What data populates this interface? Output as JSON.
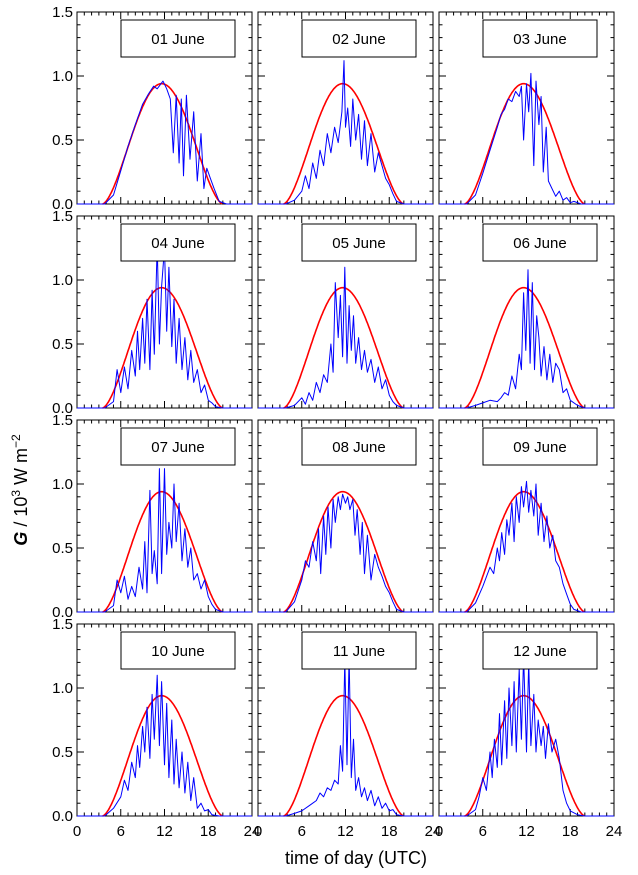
{
  "chart_data": {
    "type": "line",
    "layout": "4x3 small multiples",
    "xlabel": "time of day (UTC)",
    "ylabel": {
      "symbol": "G",
      "text": " / 10",
      "exp": "3",
      "unit": " W m",
      "unit_exp": "−2"
    },
    "xlim": [
      0,
      24
    ],
    "ylim": [
      0,
      1.5
    ],
    "xticks": [
      0,
      6,
      12,
      18,
      24
    ],
    "xtick_labels": [
      "0",
      "6",
      "12",
      "18",
      "24"
    ],
    "yticks": [
      0,
      0.5,
      1.0,
      1.5
    ],
    "ytick_labels": [
      "0.0",
      "0.5",
      "1.0",
      "1.5"
    ],
    "colors": {
      "measured": "#0000ff",
      "clear_sky": "#ff0000"
    },
    "clear_sky_curve": {
      "sunrise": 3.5,
      "sunset": 20.0,
      "peak_time": 11.6,
      "peak_value": 0.94
    },
    "panels": [
      {
        "label": "01 June",
        "measured": {
          "x": [
            3.8,
            5,
            6,
            7,
            8,
            9,
            9.8,
            10.5,
            11,
            11.8,
            12.3,
            12.8,
            13.2,
            13.6,
            14,
            14.3,
            14.6,
            15,
            15.5,
            16,
            16.5,
            17,
            17.4,
            17.8,
            18.3,
            18.8,
            19.5,
            20.5
          ],
          "y": [
            0.0,
            0.07,
            0.26,
            0.45,
            0.62,
            0.78,
            0.86,
            0.92,
            0.9,
            0.96,
            0.9,
            0.82,
            0.4,
            0.85,
            0.32,
            0.82,
            0.22,
            0.85,
            0.35,
            0.72,
            0.18,
            0.55,
            0.12,
            0.28,
            0.2,
            0.12,
            0.02,
            0.0
          ]
        }
      },
      {
        "label": "02 June",
        "measured": {
          "x": [
            3.8,
            5,
            6,
            6.5,
            7,
            7.5,
            8,
            8.5,
            9,
            9.5,
            10,
            10.5,
            11,
            11.5,
            11.8,
            12,
            12.3,
            12.7,
            13,
            13.4,
            13.8,
            14.2,
            14.6,
            15,
            15.5,
            16,
            16.5,
            17,
            17.5,
            18,
            18.5,
            19,
            20
          ],
          "y": [
            0.0,
            0.03,
            0.1,
            0.22,
            0.12,
            0.32,
            0.2,
            0.42,
            0.3,
            0.55,
            0.4,
            0.6,
            0.48,
            0.72,
            1.12,
            0.6,
            0.75,
            0.45,
            0.82,
            0.5,
            0.7,
            0.35,
            0.65,
            0.3,
            0.55,
            0.25,
            0.4,
            0.3,
            0.2,
            0.15,
            0.08,
            0.02,
            0.0
          ]
        }
      },
      {
        "label": "03 June",
        "measured": {
          "x": [
            3.8,
            5,
            6,
            7,
            8,
            8.5,
            9,
            9.5,
            10,
            10.5,
            11,
            11.3,
            11.6,
            12,
            12.3,
            12.6,
            13,
            13.3,
            13.7,
            14,
            14.3,
            14.7,
            15,
            15.5,
            16,
            16.5,
            17,
            17.5,
            18,
            18.5,
            19.5
          ],
          "y": [
            0.0,
            0.07,
            0.24,
            0.42,
            0.6,
            0.7,
            0.74,
            0.82,
            0.8,
            0.88,
            0.84,
            0.92,
            0.5,
            0.94,
            0.72,
            1.02,
            0.3,
            0.96,
            0.62,
            0.84,
            0.25,
            0.6,
            0.18,
            0.12,
            0.06,
            0.1,
            0.03,
            0.05,
            0.01,
            0.02,
            0.0
          ]
        }
      },
      {
        "label": "04 June",
        "measured": {
          "x": [
            3.8,
            5,
            5.5,
            6,
            6.5,
            7,
            7.5,
            8,
            8.3,
            8.6,
            9,
            9.3,
            9.6,
            10,
            10.3,
            10.6,
            11,
            11.3,
            11.6,
            12,
            12.3,
            12.6,
            13,
            13.3,
            13.6,
            14,
            14.4,
            14.8,
            15.2,
            15.6,
            16,
            16.5,
            17,
            17.5,
            18,
            18.5,
            19,
            20
          ],
          "y": [
            0.0,
            0.05,
            0.3,
            0.12,
            0.32,
            0.15,
            0.45,
            0.25,
            0.6,
            0.3,
            0.7,
            0.35,
            0.85,
            0.3,
            0.92,
            0.42,
            1.28,
            0.5,
            0.95,
            1.25,
            0.6,
            1.1,
            0.48,
            0.85,
            0.35,
            0.7,
            0.3,
            0.55,
            0.22,
            0.45,
            0.2,
            0.3,
            0.12,
            0.18,
            0.06,
            0.04,
            0.01,
            0.0
          ]
        }
      },
      {
        "label": "05 June",
        "measured": {
          "x": [
            3.8,
            5,
            6,
            6.5,
            7,
            7.5,
            8,
            8.5,
            9,
            9.5,
            10,
            10.3,
            10.6,
            11,
            11.3,
            11.6,
            11.9,
            12.2,
            12.5,
            12.8,
            13.1,
            13.4,
            13.8,
            14.2,
            14.6,
            15,
            15.5,
            16,
            16.5,
            17,
            17.5,
            18,
            18.5,
            19,
            20
          ],
          "y": [
            0.0,
            0.02,
            0.08,
            0.03,
            0.12,
            0.06,
            0.2,
            0.12,
            0.26,
            0.2,
            0.5,
            0.28,
            0.98,
            0.55,
            0.88,
            0.4,
            1.1,
            0.35,
            0.8,
            0.45,
            0.72,
            0.35,
            0.55,
            0.3,
            0.45,
            0.28,
            0.38,
            0.2,
            0.32,
            0.15,
            0.22,
            0.1,
            0.05,
            0.02,
            0.0
          ]
        }
      },
      {
        "label": "06 June",
        "measured": {
          "x": [
            3.8,
            5,
            6,
            7,
            8,
            8.5,
            9,
            9.5,
            10,
            10.5,
            11,
            11.3,
            11.6,
            11.9,
            12.2,
            12.5,
            12.8,
            13.1,
            13.4,
            13.7,
            14,
            14.4,
            14.8,
            15.2,
            15.6,
            16,
            16.5,
            17,
            17.5,
            18,
            19,
            20
          ],
          "y": [
            0.0,
            0.02,
            0.04,
            0.06,
            0.05,
            0.08,
            0.12,
            0.1,
            0.25,
            0.15,
            0.42,
            0.3,
            0.9,
            0.45,
            1.08,
            0.35,
            0.98,
            0.3,
            0.72,
            0.55,
            0.25,
            0.48,
            0.22,
            0.42,
            0.2,
            0.35,
            0.3,
            0.12,
            0.15,
            0.06,
            0.02,
            0.0
          ]
        }
      },
      {
        "label": "07 June",
        "measured": {
          "x": [
            3.8,
            5,
            5.5,
            6,
            6.5,
            7,
            7.5,
            8,
            8.5,
            9,
            9.3,
            9.6,
            10,
            10.3,
            10.6,
            11,
            11.3,
            11.6,
            12,
            12.3,
            12.6,
            13,
            13.3,
            13.6,
            14,
            14.4,
            14.8,
            15.2,
            15.6,
            16,
            16.5,
            17,
            17.5,
            18,
            18.5,
            19,
            20
          ],
          "y": [
            0.0,
            0.05,
            0.25,
            0.15,
            0.28,
            0.1,
            0.2,
            0.12,
            0.35,
            0.18,
            0.55,
            0.15,
            0.95,
            0.3,
            0.48,
            0.22,
            1.12,
            0.3,
            1.12,
            0.45,
            0.7,
            0.5,
            1.0,
            0.55,
            0.85,
            0.4,
            0.65,
            0.35,
            0.5,
            0.25,
            0.3,
            0.18,
            0.25,
            0.12,
            0.06,
            0.02,
            0.0
          ]
        }
      },
      {
        "label": "08 June",
        "measured": {
          "x": [
            3.8,
            5,
            6,
            6.5,
            7,
            7.5,
            8,
            8.3,
            8.6,
            9,
            9.3,
            9.6,
            10,
            10.3,
            10.6,
            11,
            11.3,
            11.6,
            12,
            12.3,
            12.6,
            13,
            13.3,
            13.6,
            14,
            14.3,
            14.6,
            15,
            15.5,
            16,
            16.5,
            17,
            17.5,
            18,
            18.5,
            19,
            20
          ],
          "y": [
            0.0,
            0.08,
            0.25,
            0.4,
            0.35,
            0.55,
            0.4,
            0.65,
            0.3,
            0.75,
            0.45,
            0.82,
            0.5,
            0.88,
            0.7,
            0.9,
            0.8,
            0.92,
            0.85,
            0.9,
            0.8,
            0.88,
            0.6,
            0.8,
            0.45,
            0.7,
            0.3,
            0.6,
            0.25,
            0.45,
            0.35,
            0.28,
            0.2,
            0.15,
            0.08,
            0.02,
            0.0
          ]
        }
      },
      {
        "label": "09 June",
        "measured": {
          "x": [
            3.8,
            5,
            6,
            7,
            7.5,
            8,
            8.3,
            8.6,
            9,
            9.3,
            9.6,
            10,
            10.3,
            10.6,
            11,
            11.3,
            11.6,
            12,
            12.3,
            12.6,
            13,
            13.3,
            13.6,
            14,
            14.4,
            14.8,
            15.2,
            15.6,
            16,
            16.5,
            17,
            17.5,
            18,
            18.5,
            19.5
          ],
          "y": [
            0.0,
            0.07,
            0.2,
            0.35,
            0.3,
            0.5,
            0.4,
            0.62,
            0.45,
            0.72,
            0.6,
            0.85,
            0.55,
            0.9,
            0.7,
            0.98,
            0.82,
            1.02,
            0.78,
            0.95,
            0.75,
            1.0,
            0.6,
            0.85,
            0.55,
            0.75,
            0.5,
            0.6,
            0.4,
            0.35,
            0.22,
            0.14,
            0.06,
            0.02,
            0.0
          ]
        }
      },
      {
        "label": "10 June",
        "measured": {
          "x": [
            3.8,
            5,
            6,
            6.5,
            7,
            7.5,
            8,
            8.3,
            8.6,
            9,
            9.3,
            9.6,
            10,
            10.3,
            10.6,
            11,
            11.3,
            11.6,
            12,
            12.3,
            12.6,
            13,
            13.3,
            13.6,
            14,
            14.4,
            14.8,
            15.2,
            15.6,
            16,
            16.5,
            17,
            17.5,
            18,
            18.5,
            19.5
          ],
          "y": [
            0.0,
            0.06,
            0.15,
            0.28,
            0.2,
            0.42,
            0.3,
            0.55,
            0.38,
            0.7,
            0.5,
            0.85,
            0.45,
            0.95,
            0.6,
            1.1,
            0.55,
            1.05,
            0.4,
            0.88,
            0.3,
            0.75,
            0.25,
            0.6,
            0.22,
            0.5,
            0.18,
            0.42,
            0.12,
            0.3,
            0.06,
            0.1,
            0.04,
            0.05,
            0.01,
            0.0
          ]
        }
      },
      {
        "label": "11 June",
        "measured": {
          "x": [
            3.8,
            5,
            6,
            7,
            7.5,
            8,
            8.5,
            9,
            9.5,
            10,
            10.5,
            11,
            11.3,
            11.6,
            11.9,
            12.2,
            12.5,
            12.8,
            13.1,
            13.4,
            13.8,
            14.2,
            14.6,
            15,
            15.5,
            16,
            16.5,
            17,
            17.5,
            18,
            18.5,
            19,
            20
          ],
          "y": [
            0.0,
            0.02,
            0.04,
            0.08,
            0.1,
            0.12,
            0.18,
            0.15,
            0.22,
            0.2,
            0.28,
            0.25,
            0.55,
            0.35,
            1.22,
            0.4,
            1.25,
            0.3,
            0.6,
            0.2,
            0.3,
            0.15,
            0.22,
            0.12,
            0.2,
            0.08,
            0.15,
            0.06,
            0.1,
            0.04,
            0.05,
            0.01,
            0.0
          ]
        }
      },
      {
        "label": "12 June",
        "measured": {
          "x": [
            3.8,
            5,
            5.5,
            6,
            6.5,
            7,
            7.3,
            7.6,
            8,
            8.3,
            8.6,
            9,
            9.3,
            9.6,
            10,
            10.3,
            10.6,
            11,
            11.3,
            11.6,
            12,
            12.3,
            12.6,
            13,
            13.3,
            13.6,
            14,
            14.3,
            14.6,
            15,
            15.5,
            16,
            16.5,
            17,
            17.5,
            18,
            19,
            20
          ],
          "y": [
            0.0,
            0.05,
            0.15,
            0.3,
            0.2,
            0.5,
            0.3,
            0.6,
            0.38,
            0.8,
            0.4,
            0.9,
            0.45,
            1.0,
            0.55,
            1.05,
            0.5,
            1.15,
            0.6,
            1.25,
            0.5,
            1.2,
            0.55,
            0.95,
            0.5,
            0.75,
            0.55,
            0.7,
            0.45,
            0.72,
            0.5,
            0.6,
            0.45,
            0.2,
            0.1,
            0.04,
            0.01,
            0.0
          ]
        }
      }
    ]
  }
}
